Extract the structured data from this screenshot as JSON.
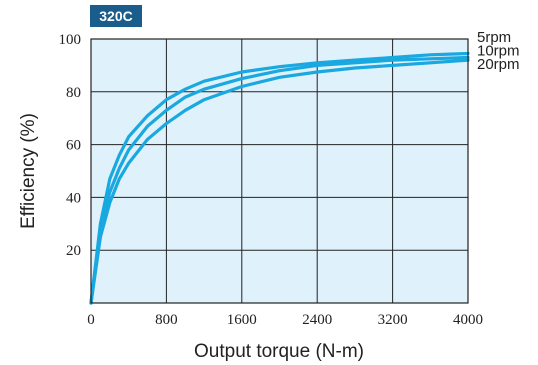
{
  "chart_data": {
    "type": "line",
    "title": "320C",
    "xlabel": "Output torque (N-m)",
    "ylabel": "Efficiency (%)",
    "xlim": [
      0,
      4000
    ],
    "ylim": [
      0,
      100
    ],
    "x_ticks": [
      0,
      800,
      1600,
      2400,
      3200,
      4000
    ],
    "y_ticks": [
      20,
      40,
      60,
      80,
      100
    ],
    "x_tick_labels": [
      "0",
      "800",
      "1600",
      "2400",
      "3200",
      "4000"
    ],
    "y_tick_labels": [
      "20",
      "40",
      "60",
      "80",
      "100"
    ],
    "grid": true,
    "colors": {
      "badge": "#1a5d8c",
      "plot_bg": "#dff1fa",
      "line": "#19a8e0",
      "grid": "#222222"
    },
    "series": [
      {
        "name": "5rpm",
        "x": [
          0,
          100,
          200,
          300,
          400,
          600,
          800,
          1000,
          1200,
          1600,
          2000,
          2400,
          2800,
          3200,
          3600,
          4000
        ],
        "y": [
          0,
          30,
          47,
          56,
          63,
          71,
          77,
          81,
          84,
          87.5,
          89.5,
          91,
          92,
          93,
          94,
          94.5
        ]
      },
      {
        "name": "10rpm",
        "x": [
          0,
          100,
          200,
          300,
          400,
          600,
          800,
          1000,
          1200,
          1600,
          2000,
          2400,
          2800,
          3200,
          3600,
          4000
        ],
        "y": [
          0,
          28,
          42,
          51,
          58,
          67,
          73,
          78,
          81,
          85,
          88,
          90,
          91,
          92,
          92.5,
          93
        ]
      },
      {
        "name": "20rpm",
        "x": [
          0,
          100,
          200,
          300,
          400,
          600,
          800,
          1000,
          1200,
          1600,
          2000,
          2400,
          2800,
          3200,
          3600,
          4000
        ],
        "y": [
          0,
          25,
          38,
          47,
          53,
          62,
          68,
          73,
          77,
          82,
          85.5,
          87.5,
          89,
          90,
          91,
          92
        ]
      }
    ]
  }
}
